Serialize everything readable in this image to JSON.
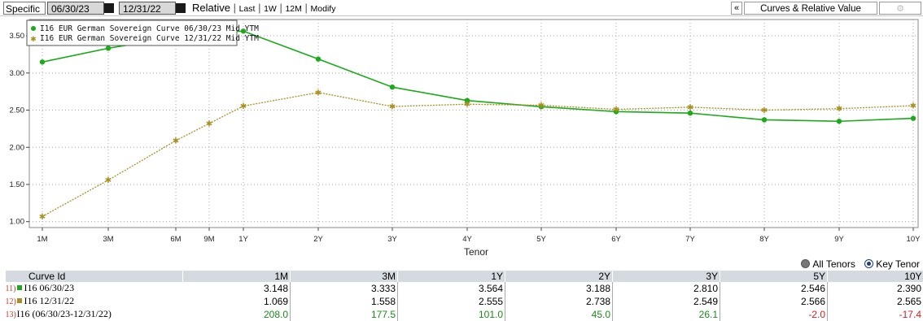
{
  "toolbar": {
    "specific": "Specific",
    "date1": "06/30/23",
    "date2": "12/31/22",
    "relative": "Relative",
    "last": "Last",
    "one_w": "1W",
    "twelve_m": "12M",
    "modify": "Modify",
    "collapse": "«",
    "curves": "Curves & Relative Value",
    "gear": "⚙"
  },
  "colors": {
    "series1": "#1aaa1a",
    "series2": "#a89020",
    "positive": "#1a8a1a",
    "negative": "#d02020",
    "header_bg": "#d5d9e0"
  },
  "chart_data": {
    "type": "line",
    "xlabel": "Tenor",
    "ylabel": "",
    "ylim": [
      0.92,
      3.72
    ],
    "y_ticks": [
      "1.00",
      "1.50",
      "2.00",
      "2.50",
      "3.00",
      "3.50"
    ],
    "x_ticks": [
      "1M",
      "3M",
      "6M",
      "9M",
      "1Y",
      "2Y",
      "3Y",
      "4Y",
      "5Y",
      "6Y",
      "7Y",
      "8Y",
      "9Y",
      "10Y"
    ],
    "grid": true,
    "legend_position": "top-left",
    "series": [
      {
        "name": "I16 EUR German Sovereign Curve 06/30/23 Mid YTM",
        "marker": "circle",
        "points": [
          {
            "tenor": "1M",
            "y": 3.148
          },
          {
            "tenor": "3M",
            "y": 3.333
          },
          {
            "tenor": "6M",
            "y": 3.48
          },
          {
            "tenor": "9M",
            "y": 3.54
          },
          {
            "tenor": "1Y",
            "y": 3.564
          },
          {
            "tenor": "2Y",
            "y": 3.188
          },
          {
            "tenor": "3Y",
            "y": 2.81
          },
          {
            "tenor": "4Y",
            "y": 2.63
          },
          {
            "tenor": "5Y",
            "y": 2.546
          },
          {
            "tenor": "6Y",
            "y": 2.48
          },
          {
            "tenor": "7Y",
            "y": 2.46
          },
          {
            "tenor": "8Y",
            "y": 2.37
          },
          {
            "tenor": "9Y",
            "y": 2.35
          },
          {
            "tenor": "10Y",
            "y": 2.39
          }
        ]
      },
      {
        "name": "I16 EUR German Sovereign Curve 12/31/22 Mid YTM",
        "marker": "star",
        "points": [
          {
            "tenor": "1M",
            "y": 1.069
          },
          {
            "tenor": "3M",
            "y": 1.558
          },
          {
            "tenor": "6M",
            "y": 2.09
          },
          {
            "tenor": "9M",
            "y": 2.32
          },
          {
            "tenor": "1Y",
            "y": 2.555
          },
          {
            "tenor": "2Y",
            "y": 2.738
          },
          {
            "tenor": "3Y",
            "y": 2.549
          },
          {
            "tenor": "4Y",
            "y": 2.58
          },
          {
            "tenor": "5Y",
            "y": 2.566
          },
          {
            "tenor": "6Y",
            "y": 2.51
          },
          {
            "tenor": "7Y",
            "y": 2.54
          },
          {
            "tenor": "8Y",
            "y": 2.5
          },
          {
            "tenor": "9Y",
            "y": 2.52
          },
          {
            "tenor": "10Y",
            "y": 2.56
          }
        ]
      }
    ]
  },
  "radios": {
    "all_tenors": "All Tenors",
    "key_tenors": "Key Tenor"
  },
  "table": {
    "columns": [
      "Curve Id",
      "1M",
      "3M",
      "1Y",
      "2Y",
      "3Y",
      "5Y",
      "10Y"
    ],
    "rows": [
      {
        "num": "11)",
        "label": "I16 06/30/23",
        "marker": "green",
        "cells": [
          "3.148",
          "3.333",
          "3.564",
          "3.188",
          "2.810",
          "2.546",
          "2.390"
        ]
      },
      {
        "num": "12)",
        "label": "I16 12/31/22",
        "marker": "gold",
        "cells": [
          "1.069",
          "1.558",
          "2.555",
          "2.738",
          "2.549",
          "2.566",
          "2.565"
        ]
      },
      {
        "num": "13)",
        "label": "I16 (06/30/23-12/31/22)",
        "marker": "",
        "cells": [
          "208.0",
          "177.5",
          "101.0",
          "45.0",
          "26.1",
          "-2.0",
          "-17.4"
        ]
      }
    ]
  }
}
